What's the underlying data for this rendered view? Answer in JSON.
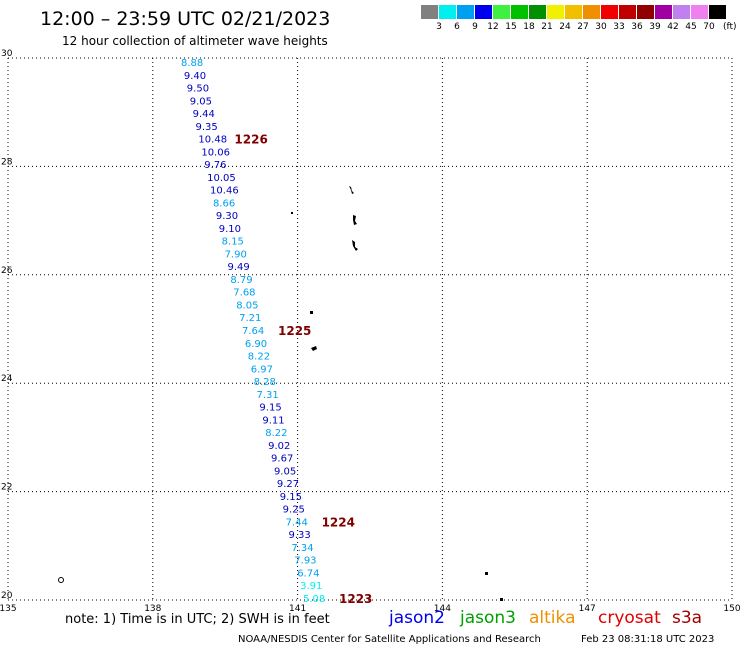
{
  "header": {
    "title": "12:00 – 23:59 UTC 02/21/2023",
    "subtitle": "12 hour collection of altimeter wave heights"
  },
  "legend": {
    "unit": "(ft)",
    "colors": [
      "#808080",
      "#00f0f0",
      "#00a0f0",
      "#0000f0",
      "#40f040",
      "#00c000",
      "#009000",
      "#f0f000",
      "#f0c000",
      "#f09000",
      "#f00000",
      "#c00000",
      "#900000",
      "#a000a0",
      "#c080f0",
      "#f080f0",
      "#000000"
    ],
    "labels": [
      "3",
      "6",
      "9",
      "12",
      "15",
      "18",
      "21",
      "24",
      "27",
      "30",
      "33",
      "36",
      "39",
      "42",
      "45",
      "70"
    ]
  },
  "map": {
    "lon_ticks": [
      "135",
      "138",
      "141",
      "144",
      "147",
      "150"
    ],
    "lat_ticks": [
      "20",
      "22",
      "24",
      "26",
      "28",
      "30"
    ],
    "lon_range": [
      135,
      150
    ],
    "lat_range": [
      20,
      30
    ],
    "grid_color": "#000000",
    "heights": [
      {
        "v": "8.88",
        "c": "#00a0f0"
      },
      {
        "v": "9.40",
        "c": "#0000c0"
      },
      {
        "v": "9.50",
        "c": "#0000c0"
      },
      {
        "v": "9.05",
        "c": "#0000c0"
      },
      {
        "v": "9.44",
        "c": "#0000c0"
      },
      {
        "v": "9.35",
        "c": "#0000c0"
      },
      {
        "v": "10.48",
        "c": "#0000c0"
      },
      {
        "v": "10.06",
        "c": "#0000c0"
      },
      {
        "v": "9.76",
        "c": "#0000c0"
      },
      {
        "v": "10.05",
        "c": "#0000c0"
      },
      {
        "v": "10.46",
        "c": "#0000c0"
      },
      {
        "v": "8.66",
        "c": "#00a0f0"
      },
      {
        "v": "9.30",
        "c": "#0000c0"
      },
      {
        "v": "9.10",
        "c": "#0000c0"
      },
      {
        "v": "8.15",
        "c": "#00a0f0"
      },
      {
        "v": "7.90",
        "c": "#00a0f0"
      },
      {
        "v": "9.49",
        "c": "#0000c0"
      },
      {
        "v": "8.79",
        "c": "#00a0f0"
      },
      {
        "v": "7.68",
        "c": "#00a0f0"
      },
      {
        "v": "8.05",
        "c": "#00a0f0"
      },
      {
        "v": "7.21",
        "c": "#00a0f0"
      },
      {
        "v": "7.64",
        "c": "#00a0f0"
      },
      {
        "v": "6.90",
        "c": "#00a0f0"
      },
      {
        "v": "8.22",
        "c": "#00a0f0"
      },
      {
        "v": "6.97",
        "c": "#00a0f0"
      },
      {
        "v": "8.28",
        "c": "#00a0f0"
      },
      {
        "v": "7.31",
        "c": "#00a0f0"
      },
      {
        "v": "9.15",
        "c": "#0000c0"
      },
      {
        "v": "9.11",
        "c": "#0000c0"
      },
      {
        "v": "8.22",
        "c": "#00a0f0"
      },
      {
        "v": "9.02",
        "c": "#0000c0"
      },
      {
        "v": "9.67",
        "c": "#0000c0"
      },
      {
        "v": "9.05",
        "c": "#0000c0"
      },
      {
        "v": "9.27",
        "c": "#0000c0"
      },
      {
        "v": "9.15",
        "c": "#0000c0"
      },
      {
        "v": "9.25",
        "c": "#0000c0"
      },
      {
        "v": "7.44",
        "c": "#00a0f0"
      },
      {
        "v": "9.33",
        "c": "#0000c0"
      },
      {
        "v": "7.34",
        "c": "#00a0f0"
      },
      {
        "v": "7.93",
        "c": "#00a0f0"
      },
      {
        "v": "6.74",
        "c": "#00a0f0"
      },
      {
        "v": "3.91",
        "c": "#00f0f0"
      },
      {
        "v": "5.08",
        "c": "#00f0f0"
      }
    ],
    "time_markers": [
      {
        "text": "1226",
        "after": "10.48"
      },
      {
        "text": "1225",
        "after": "7.64"
      },
      {
        "text": "1224",
        "after": "7.44"
      },
      {
        "text": "1223",
        "after": "5.08"
      }
    ],
    "marker_color": "#800000"
  },
  "footer": {
    "note": "note:  1) Time is in UTC; 2) SWH is in feet",
    "missions": [
      {
        "name": "jason2",
        "color": "#0000f0"
      },
      {
        "name": "jason3",
        "color": "#00a000"
      },
      {
        "name": "altika",
        "color": "#f09000"
      },
      {
        "name": "cryosat",
        "color": "#e00000"
      },
      {
        "name": "s3a",
        "color": "#a00000"
      }
    ],
    "credit": "NOAA/NESDIS Center for Satellite Applications and Research",
    "timestamp": "Feb 23 08:31:18 UTC 2023"
  }
}
